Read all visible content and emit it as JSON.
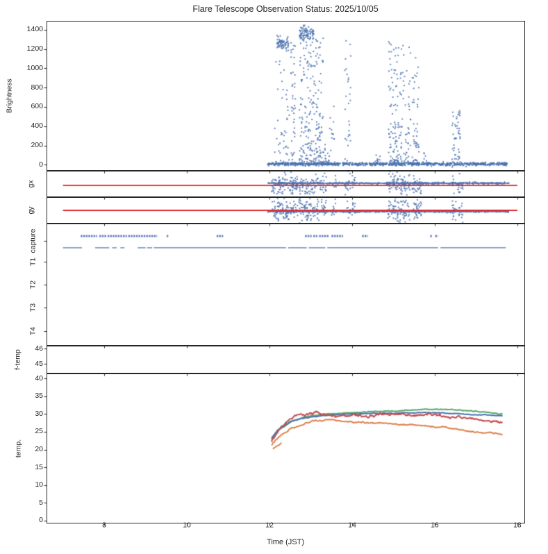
{
  "title": "Flare Telescope Observation Status: 2025/10/05",
  "xlabel": "Time (JST)",
  "x_axis": {
    "min": 6.62,
    "max": 18.17,
    "ticks": [
      8,
      10,
      12,
      14,
      16,
      18
    ]
  },
  "colors": {
    "scatter": "#4C72B0",
    "guide_red": "#E0262B",
    "temp_green": "#55A868",
    "temp_blue": "#4C72B0",
    "temp_red": "#C44E52",
    "temp_orange": "#DD8452",
    "spine": "#262626",
    "text": "#262626"
  },
  "chart_data": [
    {
      "id": "brightness",
      "type": "scatter",
      "ylabel": "Brightness",
      "ylim": [
        -55,
        1485
      ],
      "yticks": [
        0,
        200,
        400,
        600,
        800,
        1000,
        1200,
        1400
      ],
      "baseline": {
        "t_start": 11.95,
        "t_end": 17.75,
        "value": 8,
        "n": 900
      },
      "clusters": [
        {
          "t0": 12.1,
          "t1": 12.5,
          "v0": 20,
          "v1": 1160,
          "n": 45,
          "dist": "low"
        },
        {
          "t0": 12.17,
          "t1": 12.47,
          "v0": 1180,
          "v1": 1340,
          "n": 70,
          "dist": "blob"
        },
        {
          "t0": 12.52,
          "t1": 12.63,
          "v0": 20,
          "v1": 1310,
          "n": 40,
          "dist": "uniform"
        },
        {
          "t0": 12.72,
          "t1": 13.08,
          "v0": 1270,
          "v1": 1445,
          "n": 90,
          "dist": "blob"
        },
        {
          "t0": 12.72,
          "t1": 13.1,
          "v0": 20,
          "v1": 1270,
          "n": 130,
          "dist": "low"
        },
        {
          "t0": 13.1,
          "t1": 13.3,
          "v0": 20,
          "v1": 1320,
          "n": 80,
          "dist": "low"
        },
        {
          "t0": 13.3,
          "t1": 13.45,
          "v0": 10,
          "v1": 320,
          "n": 20,
          "dist": "low"
        },
        {
          "t0": 13.45,
          "t1": 13.58,
          "v0": 60,
          "v1": 660,
          "n": 12,
          "dist": "uniform"
        },
        {
          "t0": 13.82,
          "t1": 13.97,
          "v0": 20,
          "v1": 1300,
          "n": 28,
          "dist": "uniform"
        },
        {
          "t0": 14.55,
          "t1": 14.68,
          "v0": 5,
          "v1": 130,
          "n": 12,
          "dist": "low"
        },
        {
          "t0": 14.88,
          "t1": 15.12,
          "v0": 20,
          "v1": 1310,
          "n": 95,
          "dist": "low"
        },
        {
          "t0": 15.1,
          "t1": 15.42,
          "v0": 20,
          "v1": 1260,
          "n": 70,
          "dist": "low"
        },
        {
          "t0": 15.45,
          "t1": 15.62,
          "v0": 20,
          "v1": 1190,
          "n": 45,
          "dist": "low"
        },
        {
          "t0": 15.68,
          "t1": 15.82,
          "v0": 5,
          "v1": 150,
          "n": 12,
          "dist": "low"
        },
        {
          "t0": 16.42,
          "t1": 16.62,
          "v0": 20,
          "v1": 560,
          "n": 45,
          "dist": "uniform"
        }
      ]
    },
    {
      "id": "gx",
      "type": "guided_scatter",
      "ylabel": "gx",
      "red_line": {
        "t0": 7.0,
        "t1": 18.0,
        "level_frac": 0.56
      },
      "blue_line": {
        "t0": 11.95,
        "t1": 17.8,
        "level_frac": 0.47,
        "n_jitter": 450
      },
      "spread_frac": 0.2,
      "clusters": [
        {
          "t0": 12.05,
          "t1": 13.38,
          "n": 170
        },
        {
          "t0": 13.5,
          "t1": 13.62,
          "n": 10
        },
        {
          "t0": 13.82,
          "t1": 14.08,
          "n": 22
        },
        {
          "t0": 14.85,
          "t1": 15.4,
          "n": 80
        },
        {
          "t0": 15.45,
          "t1": 15.68,
          "n": 28
        },
        {
          "t0": 16.42,
          "t1": 16.68,
          "n": 26
        }
      ]
    },
    {
      "id": "gy",
      "type": "guided_scatter",
      "ylabel": "gy",
      "red_line": {
        "t0": 7.0,
        "t1": 18.0,
        "level_frac": 0.5
      },
      "blue_line": {
        "t0": 11.95,
        "t1": 17.8,
        "level_frac": 0.545,
        "n_jitter": 450
      },
      "spread_frac": 0.23,
      "clusters": [
        {
          "t0": 12.05,
          "t1": 13.38,
          "n": 180
        },
        {
          "t0": 13.5,
          "t1": 13.62,
          "n": 10
        },
        {
          "t0": 13.82,
          "t1": 14.08,
          "n": 24
        },
        {
          "t0": 14.85,
          "t1": 15.4,
          "n": 85
        },
        {
          "t0": 15.45,
          "t1": 15.68,
          "n": 30
        },
        {
          "t0": 16.42,
          "t1": 16.68,
          "n": 28
        }
      ]
    },
    {
      "id": "capture",
      "type": "event_rows",
      "yticks": [
        "capture",
        "T1",
        "T2",
        "T3",
        "T4"
      ],
      "rows": {
        "upper": [
          [
            7.43,
            7.83
          ],
          [
            7.88,
            8.05
          ],
          [
            8.08,
            8.55
          ],
          [
            8.58,
            9.28
          ],
          [
            9.51,
            9.55
          ],
          [
            10.72,
            10.88
          ],
          [
            12.86,
            13.02
          ],
          [
            13.06,
            13.16
          ],
          [
            13.2,
            13.44
          ],
          [
            13.5,
            13.78
          ],
          [
            14.24,
            14.38
          ],
          [
            15.89,
            15.93
          ],
          [
            16.01,
            16.08
          ]
        ],
        "lower": [
          [
            7.0,
            7.46
          ],
          [
            7.78,
            8.12
          ],
          [
            8.19,
            8.3
          ],
          [
            8.39,
            8.49
          ],
          [
            8.81,
            9.0
          ],
          [
            9.04,
            9.16
          ],
          [
            9.2,
            12.4
          ],
          [
            12.45,
            12.9
          ],
          [
            12.95,
            13.35
          ],
          [
            13.4,
            16.08
          ],
          [
            16.14,
            17.72
          ]
        ]
      }
    },
    {
      "id": "ftemp",
      "type": "empty",
      "ylabel": "f-temp",
      "ylim": [
        44.42,
        46.16
      ],
      "yticks": [
        46,
        45
      ]
    },
    {
      "id": "temp",
      "type": "lines",
      "ylabel": "temp.",
      "ylim": [
        -0.6,
        41.2
      ],
      "yticks": [
        0,
        5,
        10,
        15,
        20,
        25,
        30,
        35,
        40
      ],
      "series": [
        {
          "name": "green",
          "color_key": "temp_green",
          "noise": 0.06,
          "points": [
            [
              12.05,
              22.8
            ],
            [
              12.2,
              25.3
            ],
            [
              12.5,
              27.7
            ],
            [
              12.9,
              29.3
            ],
            [
              13.3,
              30.0
            ],
            [
              13.8,
              30.3
            ],
            [
              14.3,
              30.6
            ],
            [
              14.8,
              30.8
            ],
            [
              15.3,
              31.0
            ],
            [
              15.8,
              31.3
            ],
            [
              16.2,
              31.3
            ],
            [
              16.6,
              31.1
            ],
            [
              17.0,
              30.8
            ],
            [
              17.3,
              30.4
            ],
            [
              17.65,
              30.0
            ]
          ]
        },
        {
          "name": "blue",
          "color_key": "temp_blue",
          "noise": 0.06,
          "points": [
            [
              12.05,
              23.2
            ],
            [
              12.2,
              25.6
            ],
            [
              12.5,
              27.9
            ],
            [
              12.9,
              29.1
            ],
            [
              13.3,
              29.6
            ],
            [
              13.8,
              29.9
            ],
            [
              14.3,
              30.1
            ],
            [
              14.8,
              30.2
            ],
            [
              15.3,
              30.3
            ],
            [
              15.8,
              30.4
            ],
            [
              16.2,
              30.3
            ],
            [
              16.6,
              30.1
            ],
            [
              17.0,
              29.9
            ],
            [
              17.3,
              29.7
            ],
            [
              17.65,
              29.4
            ]
          ]
        },
        {
          "name": "red",
          "color_key": "temp_red",
          "noise": 0.22,
          "points": [
            [
              12.05,
              22.0
            ],
            [
              12.15,
              24.3
            ],
            [
              12.3,
              26.3
            ],
            [
              12.45,
              28.1
            ],
            [
              12.6,
              29.4
            ],
            [
              12.75,
              30.4
            ],
            [
              12.85,
              30.0
            ],
            [
              13.0,
              30.4
            ],
            [
              13.15,
              30.7
            ],
            [
              13.25,
              29.9
            ],
            [
              13.4,
              29.4
            ],
            [
              13.6,
              29.4
            ],
            [
              13.9,
              29.5
            ],
            [
              14.2,
              29.4
            ],
            [
              14.5,
              29.6
            ],
            [
              14.75,
              30.0
            ],
            [
              15.0,
              29.9
            ],
            [
              15.3,
              29.7
            ],
            [
              15.6,
              29.8
            ],
            [
              15.9,
              30.1
            ],
            [
              16.05,
              29.6
            ],
            [
              16.3,
              29.2
            ],
            [
              16.6,
              29.0
            ],
            [
              16.9,
              28.7
            ],
            [
              17.2,
              28.3
            ],
            [
              17.45,
              28.0
            ],
            [
              17.65,
              27.6
            ]
          ]
        },
        {
          "name": "orange",
          "color_key": "temp_orange",
          "noise": 0.12,
          "points": [
            [
              12.05,
              21.2
            ],
            [
              12.2,
              23.4
            ],
            [
              12.5,
              25.8
            ],
            [
              12.9,
              27.4
            ],
            [
              13.2,
              28.2
            ],
            [
              13.5,
              28.3
            ],
            [
              13.8,
              28.0
            ],
            [
              14.1,
              27.7
            ],
            [
              14.5,
              27.4
            ],
            [
              15.0,
              27.2
            ],
            [
              15.4,
              27.0
            ],
            [
              15.8,
              26.7
            ],
            [
              16.1,
              26.4
            ],
            [
              16.3,
              26.1
            ],
            [
              16.45,
              25.8
            ],
            [
              16.7,
              25.4
            ],
            [
              17.0,
              25.0
            ],
            [
              17.3,
              24.7
            ],
            [
              17.65,
              24.3
            ]
          ]
        },
        {
          "name": "orange-start-dash",
          "color_key": "temp_orange",
          "noise": 0.05,
          "points": [
            [
              12.08,
              20.2
            ],
            [
              12.3,
              21.8
            ]
          ]
        }
      ]
    }
  ]
}
